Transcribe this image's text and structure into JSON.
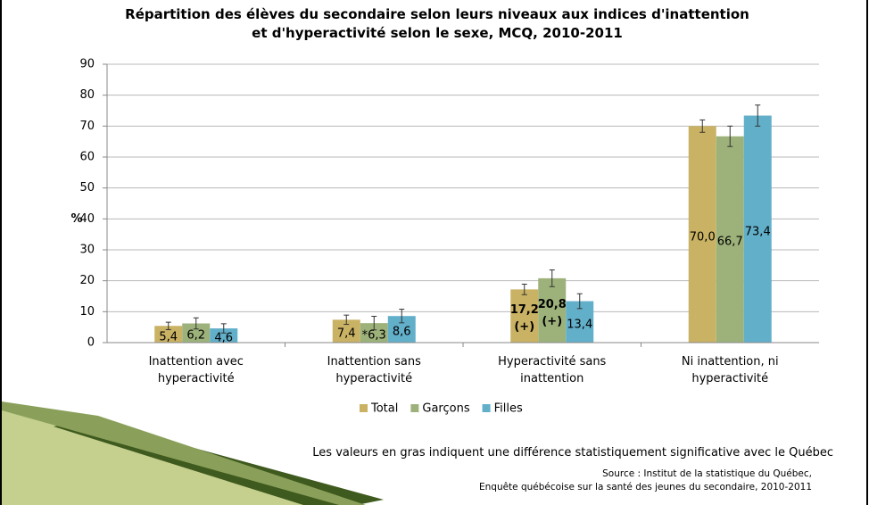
{
  "chart_data": {
    "type": "bar",
    "title": "Répartition des élèves du secondaire selon leurs niveaux aux indices d'inattention et d'hyperactivité selon le sexe, MCQ, 2010-2011",
    "y_label": "%",
    "categories": [
      "Inattention avec hyperactivité",
      "Inattention sans hyperactivité",
      "Hyperactivité sans inattention",
      "Ni inattention, ni hyperactivité"
    ],
    "series": [
      {
        "name": "Total",
        "color": "#c9b264",
        "values": [
          5.4,
          7.4,
          17.2,
          70.0
        ],
        "errors": [
          1.2,
          1.5,
          1.7,
          2.0
        ],
        "value_labels": [
          "5,4",
          "7,4",
          "17,2 (+)",
          "70,0"
        ],
        "bold": [
          false,
          false,
          true,
          false
        ]
      },
      {
        "name": "Garçons",
        "color": "#9db27a",
        "values": [
          6.2,
          6.3,
          20.8,
          66.7
        ],
        "errors": [
          1.8,
          2.2,
          2.7,
          3.3
        ],
        "value_labels": [
          "6,2",
          "*6,3",
          "20,8 (+)",
          "66,7"
        ],
        "bold": [
          false,
          false,
          true,
          false
        ]
      },
      {
        "name": "Filles",
        "color": "#62afca",
        "values": [
          4.6,
          8.6,
          13.4,
          73.4
        ],
        "errors": [
          1.5,
          2.2,
          2.4,
          3.4
        ],
        "value_labels": [
          "4,6",
          "8,6",
          "13,4",
          "73,4"
        ],
        "bold": [
          false,
          false,
          false,
          false
        ]
      }
    ],
    "ylim": [
      0,
      90
    ],
    "yticks": [
      0,
      10,
      20,
      30,
      40,
      50,
      60,
      70,
      80,
      90
    ],
    "grid": true,
    "legend": "bottom",
    "note": "Les valeurs en gras indiquent une différence statistiquement significative avec le Québec",
    "source": [
      "Source : Institut de la statistique du Québec,",
      "Enquête québécoise sur la santé des jeunes du secondaire, 2010-2011"
    ]
  }
}
